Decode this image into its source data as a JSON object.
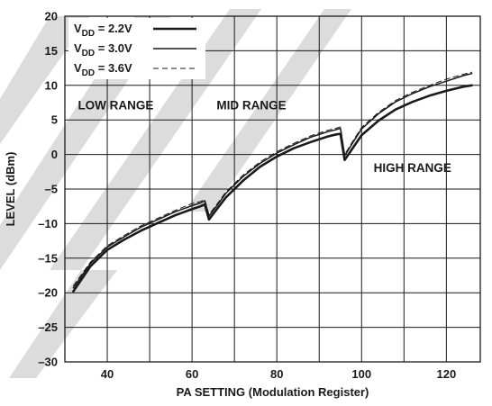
{
  "chart_data": {
    "type": "line",
    "title": "",
    "xlabel": "PA SETTING (Modulation Register)",
    "ylabel": "LEVEL (dBm)",
    "xlim": [
      30,
      128
    ],
    "ylim": [
      -30,
      20
    ],
    "xticks": [
      40,
      60,
      80,
      100,
      120
    ],
    "yticks": [
      -30,
      -25,
      -20,
      -15,
      -10,
      -5,
      0,
      5,
      10,
      15,
      20
    ],
    "grid": true,
    "legend_position": "top-left",
    "annotations": [
      {
        "text": "LOW RANGE",
        "x": 42,
        "y": 6.5
      },
      {
        "text": "MID RANGE",
        "x": 74,
        "y": 6.5
      },
      {
        "text": "HIGH RANGE",
        "x": 112,
        "y": -2.5
      }
    ],
    "series": [
      {
        "name": "V_DD = 2.2V",
        "legend": {
          "base": "V",
          "sub": "DD",
          "rest": " = 2.2V"
        },
        "style": "thick",
        "x": [
          32,
          36,
          40,
          44,
          48,
          52,
          56,
          60,
          62,
          63,
          64,
          66,
          68,
          72,
          76,
          80,
          84,
          88,
          92,
          94,
          95,
          96,
          98,
          100,
          104,
          108,
          112,
          116,
          120,
          124,
          126
        ],
        "y": [
          -19.8,
          -16.2,
          -13.8,
          -12.3,
          -11.0,
          -9.9,
          -8.8,
          -7.9,
          -7.5,
          -7.2,
          -9.4,
          -7.8,
          -6.2,
          -3.8,
          -1.8,
          -0.3,
          0.9,
          1.8,
          2.6,
          2.9,
          3.0,
          -0.8,
          1.0,
          2.8,
          4.9,
          6.5,
          7.6,
          8.5,
          9.2,
          9.8,
          10.0
        ]
      },
      {
        "name": "V_DD = 3.0V",
        "legend": {
          "base": "V",
          "sub": "DD",
          "rest": " = 3.0V"
        },
        "style": "solid",
        "x": [
          32,
          36,
          40,
          44,
          48,
          52,
          56,
          60,
          62,
          63,
          64,
          66,
          68,
          72,
          76,
          80,
          84,
          88,
          92,
          94,
          95,
          96,
          98,
          100,
          104,
          108,
          112,
          116,
          120,
          124,
          126
        ],
        "y": [
          -19.3,
          -15.8,
          -13.4,
          -11.9,
          -10.5,
          -9.4,
          -8.3,
          -7.4,
          -7.0,
          -6.7,
          -8.9,
          -7.3,
          -5.6,
          -3.2,
          -1.3,
          0.2,
          1.4,
          2.5,
          3.3,
          3.6,
          3.8,
          -0.2,
          1.8,
          3.7,
          5.9,
          7.6,
          8.8,
          9.8,
          10.6,
          11.4,
          11.7
        ]
      },
      {
        "name": "V_DD = 3.6V",
        "legend": {
          "base": "V",
          "sub": "DD",
          "rest": " = 3.6V"
        },
        "style": "dashed",
        "x": [
          32,
          36,
          40,
          44,
          48,
          52,
          56,
          60,
          62,
          63,
          64,
          66,
          68,
          72,
          76,
          80,
          84,
          88,
          92,
          94,
          95,
          96,
          98,
          100,
          104,
          108,
          112,
          116,
          120,
          124,
          126
        ],
        "y": [
          -19.0,
          -15.6,
          -13.2,
          -11.7,
          -10.3,
          -9.2,
          -8.1,
          -7.1,
          -6.8,
          -6.5,
          -8.7,
          -7.1,
          -5.4,
          -3.0,
          -1.1,
          0.4,
          1.6,
          2.7,
          3.5,
          3.8,
          4.0,
          0.0,
          2.0,
          3.9,
          6.1,
          7.8,
          9.0,
          10.0,
          10.9,
          11.6,
          11.9
        ]
      }
    ]
  }
}
